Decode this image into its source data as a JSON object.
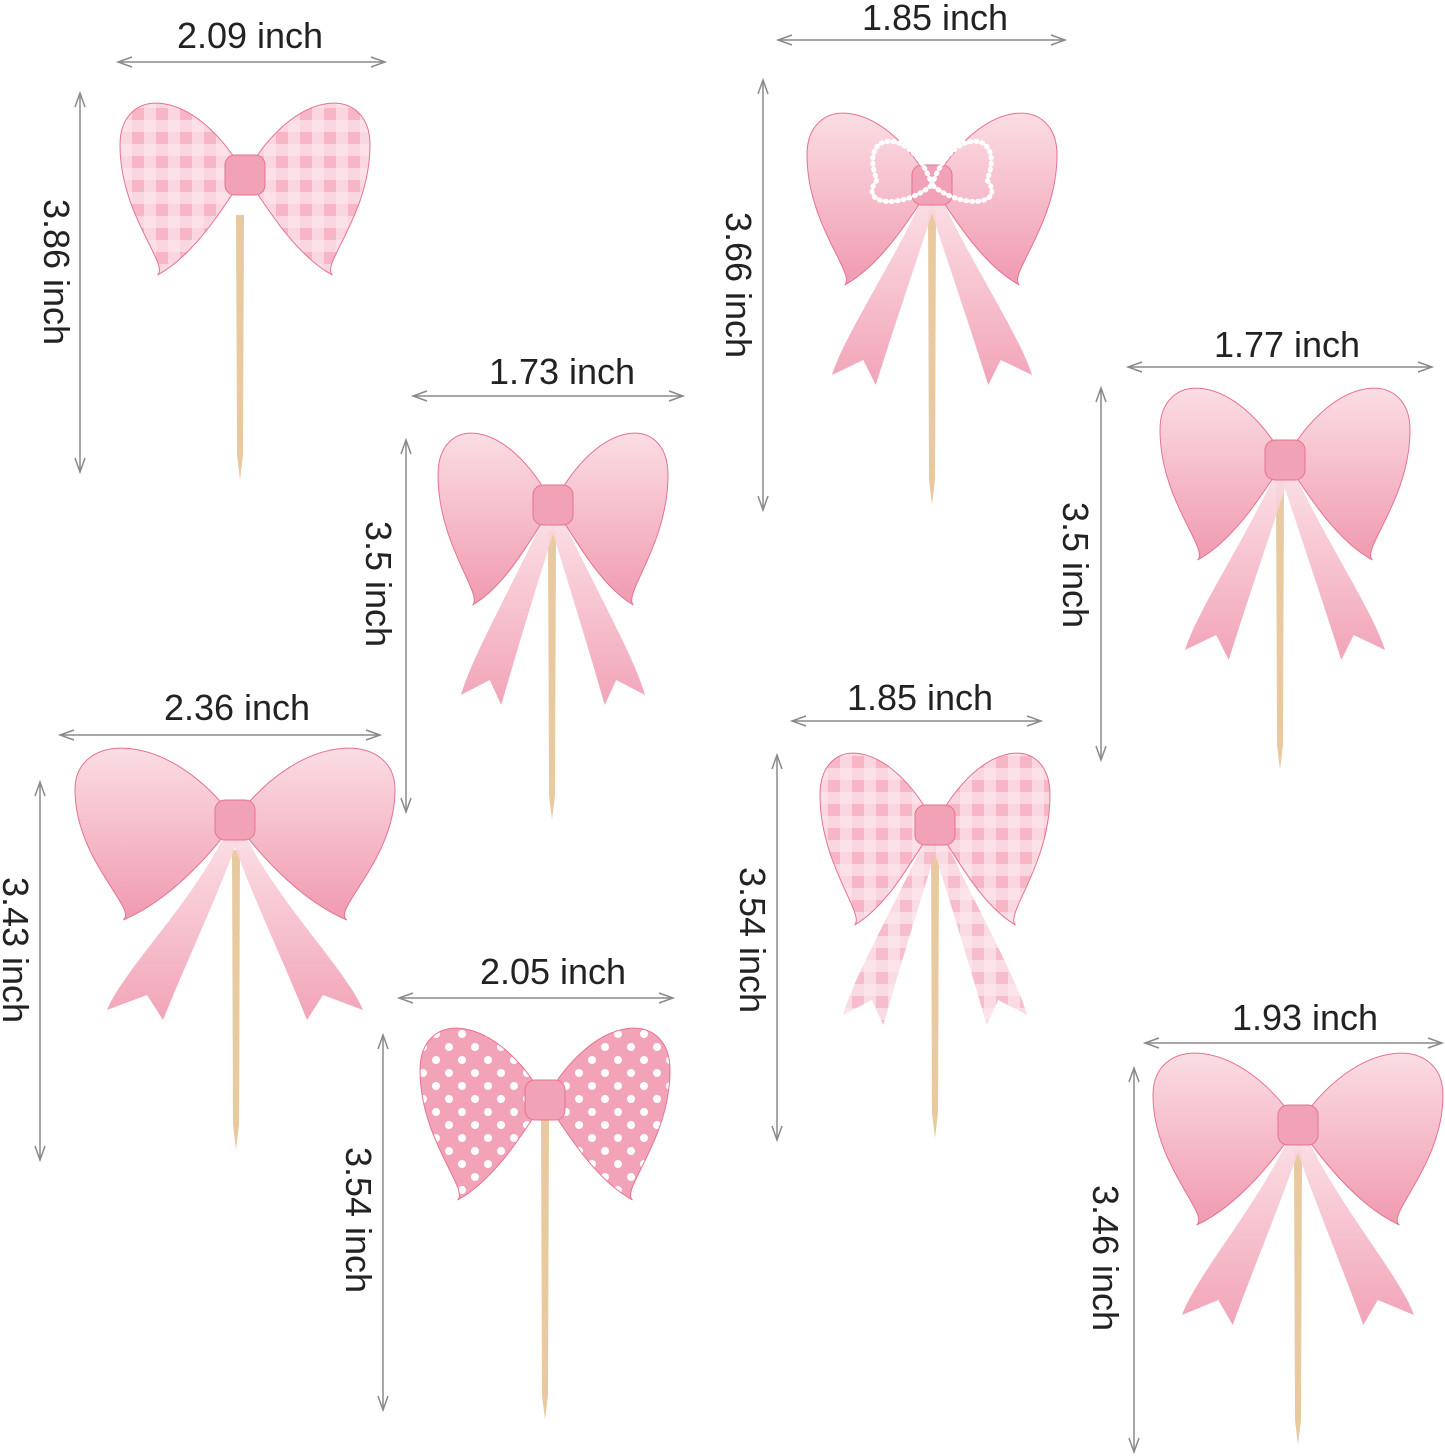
{
  "colors": {
    "bow_light": "#f9d3dc",
    "bow_mid": "#f2a2b6",
    "bow_dark": "#e5738f",
    "stick": "#e8c9a0",
    "arrow": "#8a8a8a",
    "text": "#222222"
  },
  "toppers": [
    {
      "style": "gingham",
      "width_label": "2.09 inch",
      "height_label": "3.86 inch"
    },
    {
      "style": "pearl",
      "width_label": "1.85 inch",
      "height_label": "3.66 inch"
    },
    {
      "style": "ribbon-pearl-knot",
      "width_label": "1.73 inch",
      "height_label": "3.5 inch"
    },
    {
      "style": "ribbon",
      "width_label": "1.77 inch",
      "height_label": "3.5 inch"
    },
    {
      "style": "ribbon-loose",
      "width_label": "2.36 inch",
      "height_label": "3.43 inch"
    },
    {
      "style": "gingham-tails",
      "width_label": "1.85 inch",
      "height_label": "3.54 inch"
    },
    {
      "style": "polka",
      "width_label": "2.05 inch",
      "height_label": "3.54 inch"
    },
    {
      "style": "ribbon-long",
      "width_label": "1.93 inch",
      "height_label": "3.46 inch"
    }
  ]
}
